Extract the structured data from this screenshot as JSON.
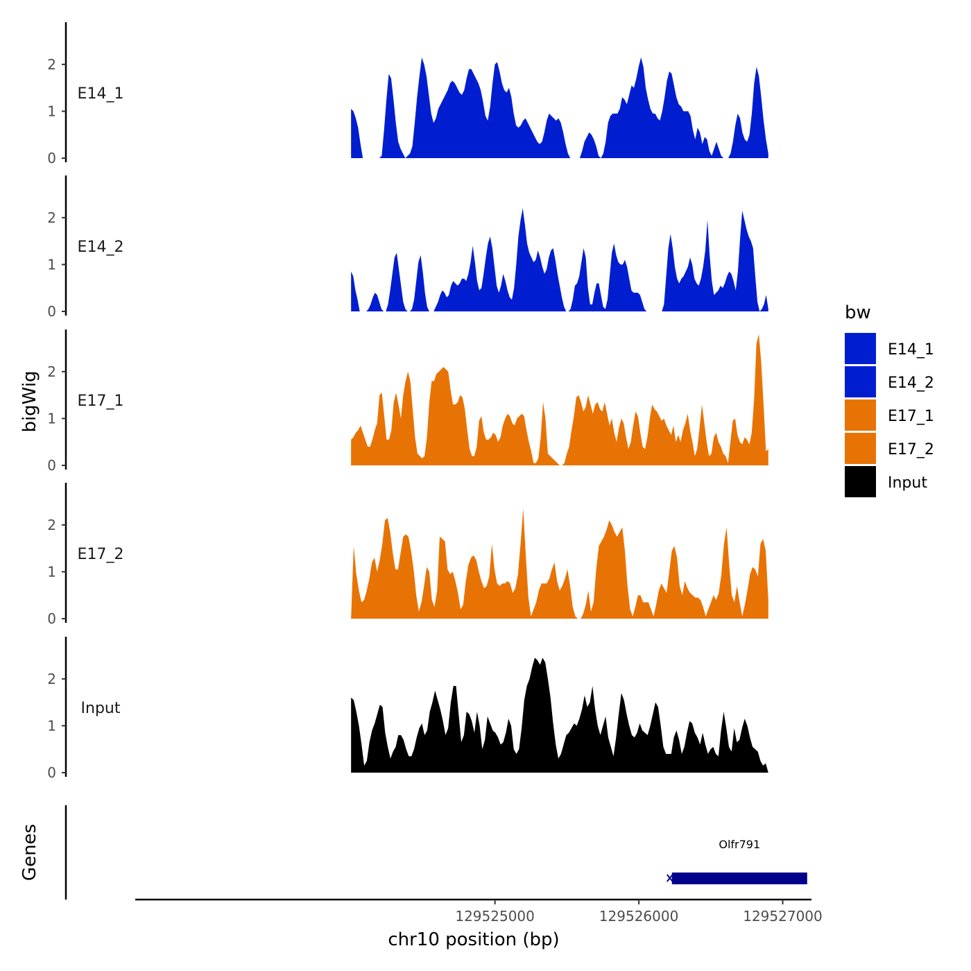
{
  "chart_data": {
    "type": "area",
    "title": "",
    "xlabel": "chr10 position (bp)",
    "ylabel": "bigWig",
    "xlim": [
      129522500,
      129527200
    ],
    "ylim": [
      0,
      2.9
    ],
    "x_ticks": [
      {
        "value": 129525000,
        "label": "129525000"
      },
      {
        "value": 129526000,
        "label": "129526000"
      },
      {
        "value": 129527000,
        "label": "129527000"
      }
    ],
    "y_ticks": [
      {
        "value": 0,
        "label": "0"
      },
      {
        "value": 1,
        "label": "1"
      },
      {
        "value": 2,
        "label": "2"
      }
    ],
    "series": [
      {
        "name": "E14_1",
        "color": "#001ecf",
        "x_start": 129524000,
        "x_end": 129526900,
        "values": [
          1.05,
          1.0,
          0.85,
          0.65,
          0.3,
          0,
          0,
          0,
          0,
          0,
          0,
          0,
          0,
          0.05,
          0.6,
          1.25,
          1.8,
          1.7,
          1.25,
          0.75,
          0.35,
          0.2,
          0.1,
          0,
          0.05,
          0.1,
          0.25,
          0.75,
          1.3,
          1.75,
          2.15,
          2.0,
          1.75,
          1.35,
          0.95,
          0.75,
          0.85,
          1.05,
          1.15,
          1.25,
          1.35,
          1.45,
          1.6,
          1.65,
          1.6,
          1.5,
          1.4,
          1.35,
          1.45,
          1.7,
          1.9,
          1.9,
          1.8,
          1.7,
          1.6,
          1.45,
          1.2,
          0.9,
          0.8,
          1.1,
          1.6,
          2.0,
          2.05,
          1.85,
          1.6,
          1.45,
          1.4,
          1.5,
          1.3,
          0.95,
          0.7,
          0.65,
          0.7,
          0.8,
          0.85,
          0.75,
          0.65,
          0.55,
          0.45,
          0.35,
          0.3,
          0.35,
          0.55,
          0.8,
          0.95,
          0.9,
          0.85,
          0.8,
          0.85,
          0.75,
          0.55,
          0.3,
          0.1,
          0,
          0,
          0,
          0,
          0,
          0.15,
          0.35,
          0.45,
          0.55,
          0.5,
          0.4,
          0.25,
          0.05,
          0,
          0.1,
          0.35,
          0.75,
          0.9,
          0.95,
          0.95,
          0.95,
          1.05,
          1.3,
          1.25,
          1.15,
          1.35,
          1.55,
          1.5,
          1.7,
          1.95,
          2.15,
          1.95,
          1.5,
          1.25,
          1.05,
          0.95,
          0.95,
          0.85,
          0.8,
          1.0,
          1.3,
          1.65,
          1.85,
          1.8,
          1.55,
          1.3,
          1.15,
          1.1,
          1.0,
          1.0,
          1.0,
          0.9,
          0.6,
          0.4,
          0.65,
          0.55,
          0.3,
          0.45,
          0.4,
          0.15,
          0.05,
          0.2,
          0.35,
          0.2,
          0.05,
          0,
          0,
          0,
          0.1,
          0.35,
          0.7,
          0.95,
          0.85,
          0.55,
          0.4,
          0.35,
          0.5,
          0.95,
          1.6,
          1.95,
          1.75,
          1.3,
          0.8,
          0.4,
          0.1
        ]
      },
      {
        "name": "E14_2",
        "color": "#001ecf",
        "x_start": 129524000,
        "x_end": 129526900,
        "values": [
          0.85,
          0.75,
          0.45,
          0.25,
          0,
          0,
          0,
          0,
          0.05,
          0.15,
          0.3,
          0.4,
          0.35,
          0.2,
          0.05,
          0,
          0,
          0.15,
          0.45,
          0.8,
          1.15,
          1.25,
          0.9,
          0.55,
          0.2,
          0.05,
          0,
          0,
          0.05,
          0.25,
          0.65,
          1.05,
          1.2,
          0.85,
          0.4,
          0.1,
          0,
          0,
          0,
          0.1,
          0.2,
          0.35,
          0.45,
          0.4,
          0.3,
          0.35,
          0.55,
          0.65,
          0.6,
          0.55,
          0.6,
          0.7,
          0.7,
          0.65,
          0.8,
          1.05,
          1.4,
          1.05,
          0.65,
          0.45,
          0.5,
          0.8,
          1.15,
          1.45,
          1.6,
          1.35,
          0.95,
          0.55,
          0.4,
          0.55,
          0.8,
          0.65,
          0.45,
          0.3,
          0.25,
          0.5,
          1.0,
          1.6,
          1.95,
          2.2,
          1.85,
          1.45,
          1.25,
          1.15,
          1.05,
          1.1,
          1.3,
          1.15,
          0.95,
          0.8,
          0.9,
          1.15,
          1.3,
          1.35,
          1.1,
          0.8,
          0.55,
          0.3,
          0.1,
          0,
          0,
          0.05,
          0.25,
          0.55,
          0.6,
          0.75,
          1.05,
          1.35,
          1.15,
          0.5,
          0.15,
          0.15,
          0.4,
          0.6,
          0.6,
          0.35,
          0.1,
          0.05,
          0.25,
          0.75,
          1.25,
          1.45,
          1.2,
          1.05,
          1.0,
          1.0,
          1.1,
          0.95,
          0.7,
          0.45,
          0.4,
          0.4,
          0.4,
          0.35,
          0.2,
          0.05,
          0,
          0,
          0,
          0,
          0,
          0,
          0,
          0,
          0.15,
          0.75,
          1.35,
          1.65,
          1.35,
          0.95,
          0.7,
          0.6,
          0.7,
          0.75,
          0.85,
          0.95,
          1.15,
          1.0,
          0.7,
          0.6,
          0.55,
          0.7,
          0.95,
          1.3,
          1.95,
          1.2,
          0.65,
          0.35,
          0.4,
          0.45,
          0.55,
          0.5,
          0.6,
          0.75,
          0.85,
          0.8,
          0.65,
          0.45,
          0.85,
          1.55,
          2.15,
          1.95,
          1.75,
          1.6,
          1.5,
          1.35,
          0.75,
          0.2,
          0,
          0.05,
          0.15,
          0.35,
          0.05
        ]
      },
      {
        "name": "E17_1",
        "color": "#e87305",
        "x_start": 129524000,
        "x_end": 129526900,
        "values": [
          0.55,
          0.6,
          0.7,
          0.75,
          0.85,
          0.7,
          0.55,
          0.4,
          0.4,
          0.55,
          0.75,
          0.9,
          1.5,
          1.55,
          1.05,
          0.55,
          0.55,
          0.75,
          1.35,
          1.55,
          1.3,
          1.0,
          1.5,
          1.8,
          2.0,
          1.8,
          1.2,
          0.6,
          0.25,
          0.2,
          0.15,
          0.2,
          0.6,
          1.35,
          1.8,
          1.8,
          1.95,
          2.0,
          2.05,
          2.1,
          2.05,
          2.0,
          1.6,
          1.3,
          1.3,
          1.35,
          1.5,
          1.45,
          1.2,
          0.75,
          0.35,
          0.2,
          0.2,
          0.4,
          0.95,
          1.05,
          0.7,
          0.55,
          0.55,
          0.6,
          0.7,
          0.65,
          0.5,
          0.6,
          0.85,
          1.0,
          1.1,
          1.05,
          0.9,
          0.85,
          1.0,
          1.05,
          1.1,
          1.05,
          0.75,
          0.5,
          0.3,
          0.05,
          0.05,
          0.15,
          0.6,
          1.35,
          1.0,
          0.25,
          0.2,
          0.15,
          0.1,
          0.05,
          0,
          0,
          0.05,
          0.25,
          0.4,
          0.75,
          1.05,
          1.45,
          1.5,
          1.35,
          1.15,
          1.25,
          1.5,
          1.3,
          1.1,
          1.3,
          1.35,
          1.2,
          1.15,
          1.35,
          1.1,
          0.85,
          1.0,
          0.7,
          0.5,
          0.8,
          1.0,
          0.9,
          0.6,
          0.35,
          0.5,
          0.85,
          1.15,
          1.05,
          0.7,
          0.4,
          0.35,
          0.6,
          1.0,
          1.3,
          1.2,
          1.15,
          1.05,
          0.95,
          1.0,
          0.85,
          0.75,
          0.65,
          0.85,
          0.5,
          0.65,
          0.5,
          0.75,
          0.9,
          1.1,
          0.75,
          0.5,
          0.2,
          0.35,
          0.8,
          1.3,
          0.9,
          0.5,
          0.2,
          0.25,
          0.6,
          0.7,
          0.5,
          0.4,
          0.25,
          0.2,
          0.05,
          0.5,
          0.95,
          1.0,
          0.65,
          0.5,
          0.45,
          0.6,
          0.55,
          0.45,
          0.7,
          1.4,
          2.6,
          2.8,
          2.2,
          1.3,
          0.3,
          0.35
        ]
      },
      {
        "name": "E17_2",
        "color": "#e87305",
        "x_start": 129524000,
        "x_end": 129526900,
        "values": [
          0.0,
          1.55,
          0.95,
          0.6,
          0.35,
          0.4,
          0.6,
          0.85,
          1.2,
          1.3,
          1.0,
          1.25,
          1.6,
          2.1,
          2.15,
          1.85,
          1.4,
          1.05,
          1.05,
          1.4,
          1.75,
          1.8,
          1.75,
          1.45,
          1.05,
          0.5,
          0.15,
          0.35,
          0.7,
          1.1,
          1.0,
          0.4,
          0.25,
          0.6,
          1.75,
          1.7,
          1.65,
          1.05,
          0.95,
          1.0,
          0.8,
          0.55,
          0.2,
          0.3,
          0.8,
          1.15,
          1.3,
          1.35,
          1.25,
          1.0,
          0.8,
          0.65,
          0.7,
          0.9,
          1.6,
          1.05,
          0.75,
          0.7,
          0.75,
          0.75,
          0.8,
          0.75,
          0.55,
          0.65,
          0.95,
          1.6,
          2.35,
          1.35,
          0.45,
          0.05,
          0.2,
          0.35,
          0.6,
          0.75,
          0.75,
          0.75,
          0.85,
          1.05,
          1.2,
          0.8,
          0.6,
          0.7,
          0.85,
          1.05,
          0.7,
          0.25,
          0.05,
          0,
          0,
          0.1,
          0.3,
          0.6,
          0.15,
          0.35,
          1.05,
          1.55,
          1.65,
          1.75,
          1.9,
          2.1,
          2.0,
          1.85,
          1.75,
          1.85,
          1.95,
          1.45,
          0.7,
          0.2,
          0.05,
          0.25,
          0.5,
          0.5,
          0.35,
          0.35,
          0.35,
          0.2,
          0.05,
          0.3,
          0.6,
          0.75,
          0.65,
          0.55,
          1.0,
          1.45,
          1.55,
          1.3,
          0.7,
          0.5,
          0.8,
          0.65,
          0.55,
          0.5,
          0.45,
          0.45,
          0.4,
          0.25,
          0.05,
          0.2,
          0.35,
          0.5,
          0.4,
          0.55,
          0.95,
          1.6,
          1.95,
          1.15,
          0.5,
          0.35,
          0.7,
          0.35,
          0.05,
          0.3,
          0.6,
          0.95,
          1.1,
          1.05,
          0.9,
          1.6,
          1.7,
          1.45,
          0.4
        ]
      },
      {
        "name": "Input",
        "color": "#000000",
        "x_start": 129524000,
        "x_end": 129526900,
        "values": [
          1.6,
          1.55,
          1.3,
          1.0,
          0.6,
          0.15,
          0.25,
          0.65,
          0.9,
          1.05,
          1.25,
          1.45,
          1.4,
          0.85,
          0.55,
          0.3,
          0.45,
          0.55,
          0.8,
          0.8,
          0.7,
          0.5,
          0.35,
          0.35,
          0.5,
          0.75,
          0.95,
          1.05,
          0.8,
          0.9,
          1.3,
          1.5,
          1.75,
          1.55,
          1.35,
          1.1,
          0.8,
          0.95,
          1.5,
          1.85,
          1.85,
          1.25,
          0.65,
          0.8,
          1.3,
          1.25,
          1.1,
          0.85,
          1.3,
          1.0,
          0.5,
          0.7,
          1.2,
          1.05,
          0.9,
          0.85,
          0.75,
          0.6,
          0.65,
          0.85,
          1.15,
          1.0,
          0.5,
          0.4,
          0.5,
          0.95,
          1.55,
          1.85,
          2.0,
          2.25,
          2.45,
          2.4,
          2.3,
          2.45,
          2.35,
          2.0,
          1.6,
          1.05,
          0.6,
          0.3,
          0.4,
          0.6,
          0.8,
          0.85,
          0.95,
          1.05,
          1.0,
          1.15,
          1.35,
          1.65,
          1.4,
          1.5,
          1.85,
          1.35,
          1.0,
          0.8,
          1.0,
          1.2,
          0.75,
          0.55,
          0.35,
          0.75,
          1.25,
          1.7,
          1.55,
          1.25,
          1.0,
          0.8,
          0.75,
          0.85,
          1.05,
          0.9,
          0.85,
          0.8,
          1.0,
          1.25,
          1.5,
          1.4,
          1.0,
          0.55,
          0.4,
          0.4,
          0.4,
          0.75,
          0.9,
          0.7,
          0.4,
          0.55,
          0.85,
          1.1,
          1.05,
          0.85,
          0.75,
          0.6,
          0.85,
          0.6,
          0.4,
          0.5,
          0.55,
          0.4,
          0.35,
          0.9,
          1.3,
          0.95,
          0.55,
          0.45,
          0.95,
          0.65,
          0.7,
          0.95,
          1.15,
          1.0,
          0.75,
          0.55,
          0.5,
          0.45,
          0.25,
          0.15,
          0.2,
          0.0
        ]
      }
    ],
    "genes_track_label": "Genes",
    "genes": [
      {
        "name": "Olfr791",
        "start": 129526230,
        "end": 129527170,
        "strand": "-",
        "color": "#00008b"
      }
    ],
    "legend": {
      "title": "bw",
      "position": "right",
      "entries": [
        {
          "label": "E14_1",
          "color": "#001ecf"
        },
        {
          "label": "E14_2",
          "color": "#001ecf"
        },
        {
          "label": "E17_1",
          "color": "#e87305"
        },
        {
          "label": "E17_2",
          "color": "#e87305"
        },
        {
          "label": "Input",
          "color": "#000000"
        }
      ]
    }
  }
}
